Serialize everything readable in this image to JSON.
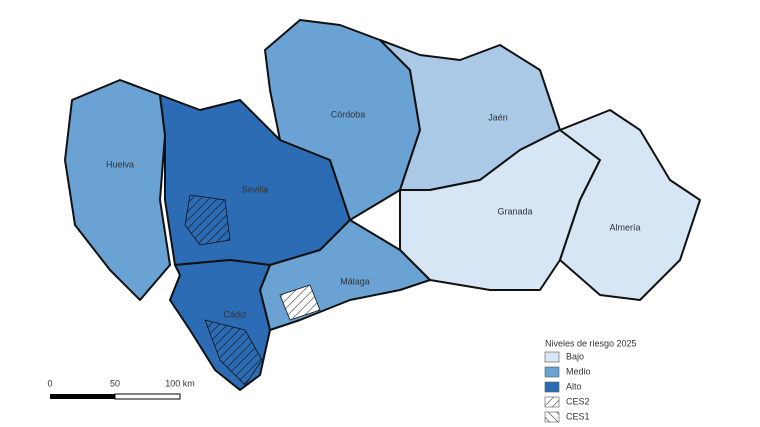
{
  "provinces": [
    "Huelva",
    "Sevilla",
    "Córdoba",
    "Jaén",
    "Granada",
    "Almería",
    "Málaga",
    "Cádiz"
  ],
  "legend": {
    "title": "Niveles de riesgo 2025",
    "items": [
      "Bajo",
      "Medio",
      "Alto",
      "CES2",
      "CES1"
    ]
  },
  "scale_bar": {
    "labels": [
      "0",
      "50",
      "100 km"
    ]
  }
}
